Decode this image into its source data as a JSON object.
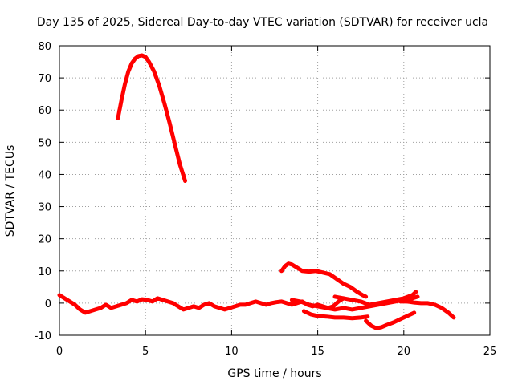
{
  "chart_data": {
    "type": "line",
    "title": "Day 135 of 2025, Sidereal Day-to-day VTEC variation (SDTVAR) for receiver ucla",
    "xlabel": "GPS time / hours",
    "ylabel": "SDTVAR / TECUs",
    "xlim": [
      0,
      25
    ],
    "ylim": [
      -10,
      80
    ],
    "xticks": [
      0,
      5,
      10,
      15,
      20,
      25
    ],
    "yticks": [
      -10,
      0,
      10,
      20,
      30,
      40,
      50,
      60,
      70,
      80
    ],
    "grid": true,
    "legend": "none",
    "color": "#ff0000",
    "series": [
      {
        "name": "arc-peak",
        "x": [
          3.4,
          3.6,
          3.8,
          4.0,
          4.2,
          4.4,
          4.6,
          4.8,
          5.0,
          5.2,
          5.5,
          5.8,
          6.1,
          6.4,
          6.7,
          7.0,
          7.3
        ],
        "y": [
          57.5,
          63,
          68,
          72,
          74.5,
          76,
          76.8,
          77,
          76.5,
          75,
          72,
          67.5,
          62,
          56,
          49.5,
          43,
          38
        ]
      },
      {
        "name": "arc-main",
        "x": [
          0,
          0.3,
          0.6,
          0.9,
          1.2,
          1.5,
          1.8,
          2.1,
          2.4,
          2.7,
          3.0,
          3.3,
          3.6,
          3.9,
          4.2,
          4.5,
          4.8,
          5.1,
          5.4,
          5.7,
          6.0,
          6.3,
          6.6,
          6.9,
          7.2,
          7.5,
          7.8,
          8.1,
          8.4,
          8.7,
          9.0,
          9.3,
          9.6,
          9.9,
          10.2,
          10.5,
          10.8,
          11.1,
          11.4,
          11.7,
          12.0,
          12.3,
          12.6,
          12.9,
          13.2,
          13.5,
          13.8,
          14.1,
          14.4,
          14.7,
          15.0,
          15.3,
          15.6,
          15.9,
          16.2,
          16.5
        ],
        "y": [
          2.5,
          1.5,
          0.5,
          -0.5,
          -2.0,
          -3.0,
          -2.5,
          -2.0,
          -1.5,
          -0.5,
          -1.5,
          -1.0,
          -0.5,
          0.0,
          1.0,
          0.5,
          1.2,
          1.0,
          0.5,
          1.5,
          1.0,
          0.5,
          0.0,
          -1.0,
          -2.0,
          -1.5,
          -1.0,
          -1.5,
          -0.5,
          0.0,
          -1.0,
          -1.5,
          -2.0,
          -1.5,
          -1.0,
          -0.5,
          -0.5,
          0.0,
          0.5,
          0.0,
          -0.5,
          0.0,
          0.3,
          0.5,
          0.0,
          -0.5,
          0.0,
          0.5,
          -0.5,
          -1.0,
          -0.5,
          -1.0,
          -1.5,
          -1.0,
          0.5,
          1.5
        ]
      },
      {
        "name": "arc-late-1",
        "x": [
          16.0,
          16.5,
          17.0,
          17.5,
          18.0,
          18.5,
          19.0,
          19.5,
          20.0,
          20.5,
          20.7
        ],
        "y": [
          2.0,
          1.5,
          1.0,
          0.5,
          -0.5,
          0.0,
          0.5,
          1.0,
          1.5,
          2.5,
          3.5
        ]
      },
      {
        "name": "arc-late-2",
        "x": [
          12.9,
          13.1,
          13.3,
          13.5,
          13.8,
          14.1,
          14.5,
          14.9,
          15.3,
          15.7,
          16.1,
          16.5,
          16.9,
          17.3,
          17.6,
          17.8
        ],
        "y": [
          10.0,
          11.5,
          12.3,
          12.0,
          11.0,
          10.0,
          9.8,
          10.0,
          9.5,
          9.0,
          7.5,
          6.0,
          5.0,
          3.5,
          2.5,
          2.0
        ]
      },
      {
        "name": "arc-late-3",
        "x": [
          13.5,
          14.0,
          14.5,
          15.0,
          15.5,
          16.0,
          16.5,
          17.0,
          17.5,
          18.0,
          18.5,
          19.0,
          19.5,
          20.0,
          20.5,
          20.8
        ],
        "y": [
          1.0,
          0.5,
          -0.5,
          -1.0,
          -1.5,
          -2.0,
          -1.5,
          -2.0,
          -1.5,
          -1.0,
          -0.5,
          0.0,
          0.5,
          1.0,
          1.5,
          2.0
        ]
      },
      {
        "name": "arc-late-4",
        "x": [
          14.2,
          14.6,
          15.0,
          15.5,
          16.0,
          16.5,
          17.0,
          17.5,
          17.9
        ],
        "y": [
          -2.5,
          -3.5,
          -4.0,
          -4.2,
          -4.5,
          -4.5,
          -4.7,
          -4.5,
          -4.2
        ]
      },
      {
        "name": "arc-late-5",
        "x": [
          17.8,
          18.1,
          18.4,
          18.7,
          19.0,
          19.4,
          19.8,
          20.2,
          20.6
        ],
        "y": [
          -5.5,
          -7.0,
          -7.8,
          -7.5,
          -6.8,
          -6.0,
          -5.0,
          -4.0,
          -3.0
        ]
      },
      {
        "name": "arc-late-6",
        "x": [
          19.8,
          20.2,
          20.6,
          21.0,
          21.4,
          21.8,
          22.2,
          22.6,
          22.9
        ],
        "y": [
          0.5,
          0.5,
          0.2,
          0.0,
          0.0,
          -0.5,
          -1.5,
          -3.0,
          -4.5
        ]
      }
    ]
  }
}
